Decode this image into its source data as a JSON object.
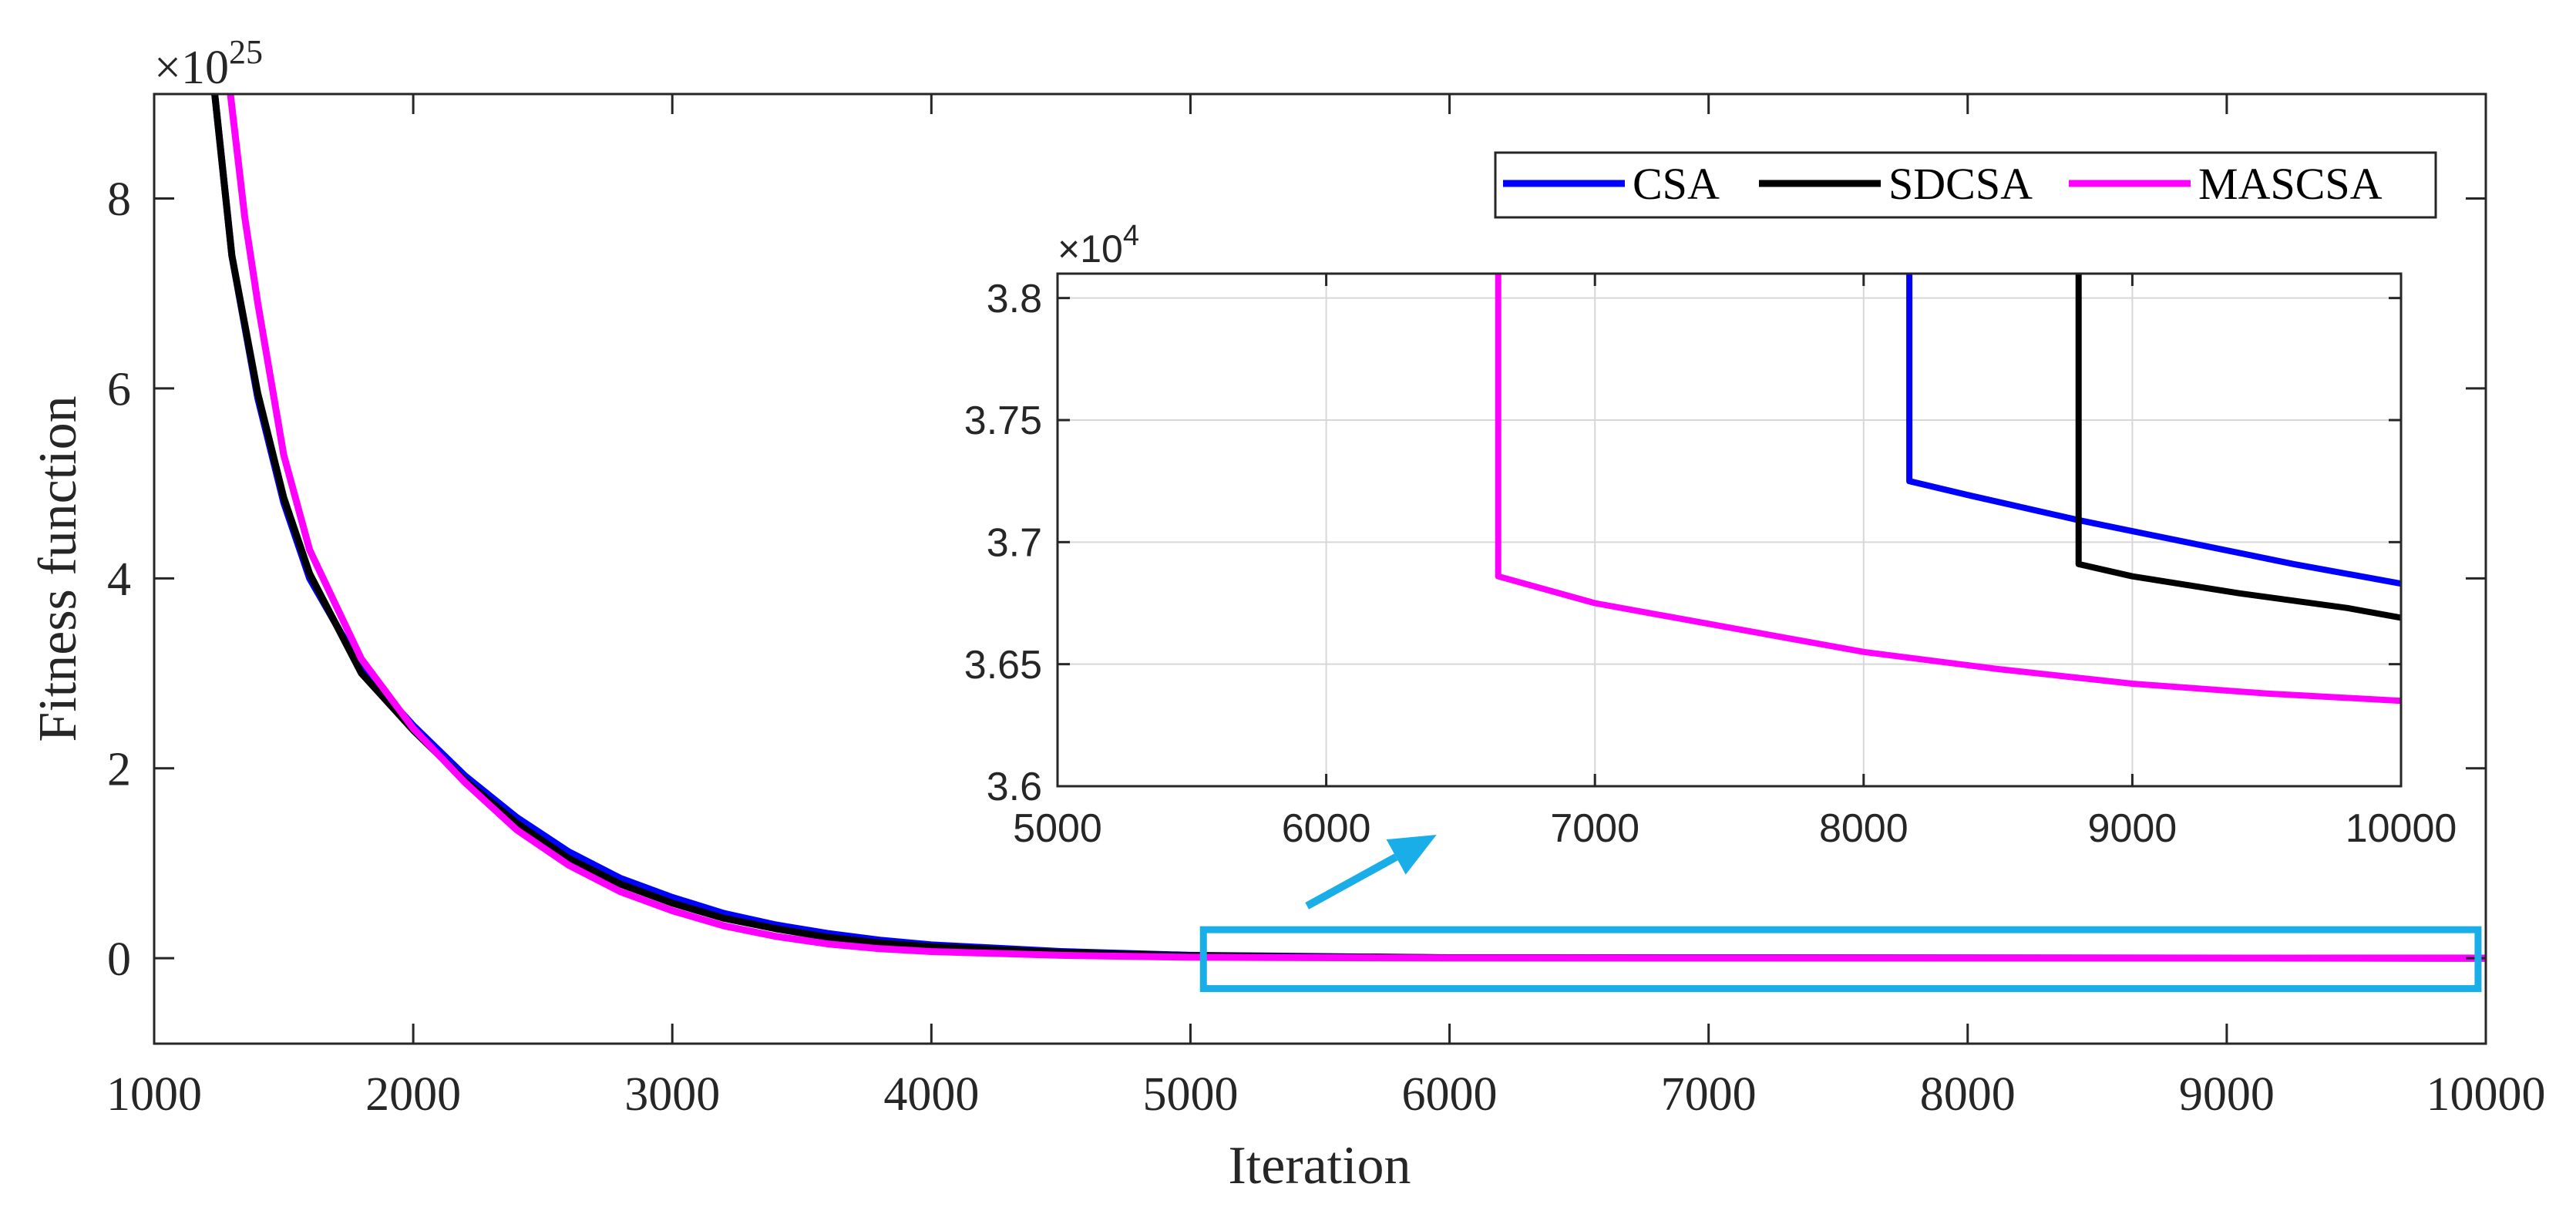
{
  "colors": {
    "CSA": "#0000ff",
    "SDCSA": "#000000",
    "MASCSA": "#ff00ff",
    "highlight": "#1aaee8",
    "grid": "#d7d7d7"
  },
  "chart_data": [
    {
      "id": "main",
      "type": "line",
      "xlabel": "Iteration",
      "ylabel": "Fitness function",
      "y_multiplier_base": "×10",
      "y_multiplier_exp": "25",
      "xlim": [
        1000,
        10000
      ],
      "ylim": [
        -0.9,
        9.1
      ],
      "xticks": [
        1000,
        2000,
        3000,
        4000,
        5000,
        6000,
        7000,
        8000,
        9000,
        10000
      ],
      "yticks": [
        0,
        2,
        4,
        6,
        8
      ],
      "grid": false,
      "legend_position": "top-right",
      "legend": [
        "CSA",
        "SDCSA",
        "MASCSA"
      ],
      "series": [
        {
          "name": "CSA",
          "x": [
            1230,
            1300,
            1400,
            1500,
            1600,
            1800,
            2000,
            2200,
            2400,
            2600,
            2800,
            3000,
            3200,
            3400,
            3600,
            3800,
            4000,
            4500,
            5000,
            6000,
            10000
          ],
          "y": [
            9.2,
            7.4,
            5.9,
            4.8,
            4.0,
            3.05,
            2.45,
            1.92,
            1.48,
            1.12,
            0.84,
            0.64,
            0.47,
            0.35,
            0.26,
            0.19,
            0.14,
            0.07,
            0.03,
            0.005,
            0.0
          ]
        },
        {
          "name": "SDCSA",
          "x": [
            1230,
            1300,
            1400,
            1500,
            1600,
            1800,
            2000,
            2200,
            2400,
            2600,
            2800,
            3000,
            3200,
            3400,
            3600,
            3800,
            4000,
            4500,
            5000,
            6000,
            10000
          ],
          "y": [
            9.2,
            7.4,
            5.95,
            4.85,
            4.05,
            3.0,
            2.4,
            1.87,
            1.42,
            1.05,
            0.78,
            0.58,
            0.42,
            0.31,
            0.22,
            0.16,
            0.12,
            0.06,
            0.025,
            0.004,
            0.0
          ]
        },
        {
          "name": "MASCSA",
          "x": [
            1290,
            1350,
            1400,
            1500,
            1600,
            1800,
            2000,
            2200,
            2400,
            2600,
            2800,
            3000,
            3200,
            3400,
            3600,
            3800,
            4000,
            4500,
            5000,
            6000,
            10000
          ],
          "y": [
            9.2,
            7.8,
            6.9,
            5.3,
            4.3,
            3.15,
            2.42,
            1.85,
            1.35,
            0.98,
            0.7,
            0.5,
            0.34,
            0.23,
            0.15,
            0.1,
            0.07,
            0.03,
            0.01,
            0.002,
            0.0
          ]
        }
      ],
      "annotation": {
        "type": "highlight-box",
        "x_range": [
          5050,
          9970
        ],
        "y_range": [
          -0.32,
          0.3
        ],
        "arrow_from": [
          5450,
          0.55
        ],
        "arrow_to": [
          5950,
          1.3
        ]
      }
    },
    {
      "id": "inset",
      "type": "line",
      "xlabel": "",
      "ylabel": "",
      "y_multiplier_base": "×10",
      "y_multiplier_exp": "4",
      "xlim": [
        5000,
        10000
      ],
      "ylim": [
        3.6,
        3.81
      ],
      "xticks": [
        5000,
        6000,
        7000,
        8000,
        9000,
        10000
      ],
      "yticks": [
        3.6,
        3.65,
        3.7,
        3.75,
        3.8
      ],
      "ytick_labels": [
        "3.6",
        "3.65",
        "3.7",
        "3.75",
        "3.8"
      ],
      "grid": true,
      "series": [
        {
          "name": "CSA",
          "x": [
            8170,
            8170,
            8400,
            8800,
            9200,
            9600,
            10000
          ],
          "y": [
            3.82,
            3.725,
            3.719,
            3.709,
            3.7,
            3.691,
            3.683
          ]
        },
        {
          "name": "SDCSA",
          "x": [
            8800,
            8800,
            9000,
            9400,
            9800,
            10000
          ],
          "y": [
            3.82,
            3.691,
            3.686,
            3.679,
            3.673,
            3.669
          ]
        },
        {
          "name": "MASCSA",
          "x": [
            6640,
            6640,
            7000,
            7500,
            8000,
            8500,
            9000,
            9500,
            10000
          ],
          "y": [
            3.82,
            3.686,
            3.675,
            3.665,
            3.655,
            3.648,
            3.642,
            3.638,
            3.635
          ]
        }
      ]
    }
  ]
}
